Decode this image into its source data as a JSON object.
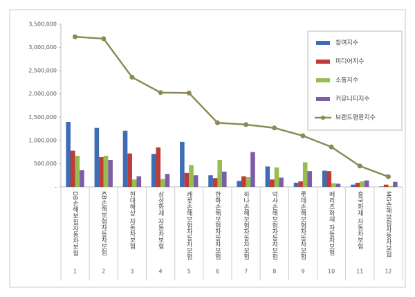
{
  "chart_data": {
    "type": "bar",
    "categories": [
      "DB손해보험자동차보험",
      "KB손해보험자동차보험",
      "현대해상 자동차보험",
      "삼성화재 자동차보험",
      "캐롯손해보험자동차보험",
      "한화손해보험자동차보험",
      "하나손해보험자동차보험",
      "악사손해보험자동차보험",
      "롯데손해보험자동차보험",
      "메리츠화재 자동차보험",
      "흥국화재 자동차보험",
      "MG손해보험자동차보험"
    ],
    "category_numbers": [
      "1",
      "2",
      "3",
      "4",
      "5",
      "6",
      "7",
      "8",
      "9",
      "10",
      "11",
      "12"
    ],
    "series": [
      {
        "name": "참여지수",
        "type": "bar",
        "color": "#3e6db4",
        "values": [
          1400000,
          1270000,
          1210000,
          710000,
          970000,
          250000,
          130000,
          440000,
          90000,
          350000,
          50000,
          10000
        ]
      },
      {
        "name": "미디어지수",
        "type": "bar",
        "color": "#be3b37",
        "values": [
          780000,
          640000,
          720000,
          850000,
          300000,
          190000,
          230000,
          160000,
          120000,
          340000,
          90000,
          50000
        ]
      },
      {
        "name": "소통지수",
        "type": "bar",
        "color": "#96bd4f",
        "values": [
          670000,
          670000,
          160000,
          170000,
          470000,
          580000,
          210000,
          420000,
          530000,
          80000,
          120000,
          20000
        ]
      },
      {
        "name": "커뮤니티지수",
        "type": "bar",
        "color": "#7c5ea6",
        "values": [
          360000,
          580000,
          230000,
          280000,
          250000,
          330000,
          750000,
          200000,
          340000,
          70000,
          140000,
          110000
        ]
      },
      {
        "name": "브랜드평판지수",
        "type": "line",
        "color": "#8b8a55",
        "values": [
          3230000,
          3190000,
          2360000,
          2030000,
          2020000,
          1380000,
          1340000,
          1270000,
          1100000,
          860000,
          450000,
          220000
        ]
      }
    ],
    "ylim": [
      0,
      3500000
    ],
    "yticks": [
      {
        "value": 0,
        "label": "-"
      },
      {
        "value": 500000,
        "label": "500,000"
      },
      {
        "value": 1000000,
        "label": "1,000,000"
      },
      {
        "value": 1500000,
        "label": "1,500,000"
      },
      {
        "value": 2000000,
        "label": "2,000,000"
      },
      {
        "value": 2500000,
        "label": "2,500,000"
      },
      {
        "value": 3000000,
        "label": "3,000,000"
      },
      {
        "value": 3500000,
        "label": "3,500,000"
      }
    ],
    "grid": false,
    "legend": "upper right"
  }
}
